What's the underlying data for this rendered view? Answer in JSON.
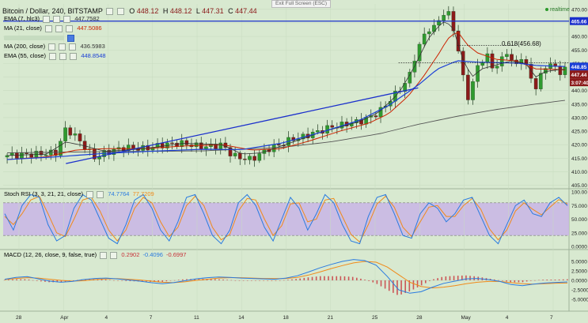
{
  "header": {
    "title": "Bitcoin / Dollar, 240, BITSTAMP",
    "ohlc": {
      "o_label": "O",
      "o": "448.12",
      "h_label": "H",
      "h": "448.12",
      "l_label": "L",
      "l": "447.31",
      "c_label": "C",
      "c": "447.44"
    },
    "exit_fullscreen": "Exit Full Screen (ESC)",
    "realtime": "realtime"
  },
  "indicators": [
    {
      "name": "EMA (7, hlc3)",
      "value": "447.7582",
      "color": "#333333"
    },
    {
      "name": "MA (21, close)",
      "value": "447.5086",
      "color": "#cc2200"
    },
    {
      "name": "MA (200, close)",
      "value": "436.5983",
      "color": "#444444"
    },
    {
      "name": "EMA (55, close)",
      "value": "448.8548",
      "color": "#1144cc"
    }
  ],
  "stoch": {
    "name": "Stoch RSI (3, 3, 21, 21, close)",
    "k": "74.7764",
    "d": "77.7209"
  },
  "macd": {
    "name": "MACD (12, 26, close, 9, false, true)",
    "hist": "0.2902",
    "macd": "-0.4096",
    "signal": "-0.6997"
  },
  "price_badges": {
    "resistance": "465.66",
    "last": "447.44",
    "ema55": "448.85",
    "countdown": "3:07:40"
  },
  "fib_label": "0.618(456.68)",
  "colors": {
    "bg": "#d8e9d0",
    "up": "#2f9a2f",
    "down": "#8b1a1a",
    "ema7": "#333333",
    "ma21": "#cc2200",
    "ma200": "#555555",
    "ema55": "#1a3fd6",
    "trend": "#1a2fcc",
    "stoch_k": "#2a7be0",
    "stoch_d": "#f08a1a",
    "stoch_band": "#c9b5e6",
    "macd_line": "#2a7be0",
    "macd_signal": "#f08a1a",
    "hist": "#c8323a"
  },
  "chart_data": [
    {
      "type": "candlestick",
      "title": "Bitcoin / Dollar, 240, BITSTAMP",
      "ylim": [
        404,
        472
      ],
      "yticks": [
        "470.00",
        "465.00",
        "460.00",
        "455.00",
        "450.00",
        "445.00",
        "440.00",
        "435.00",
        "430.00",
        "425.00",
        "420.00",
        "415.00",
        "410.00",
        "405.00"
      ],
      "xticks": [
        "28",
        "Apr",
        "4",
        "7",
        "11",
        "14",
        "18",
        "21",
        "25",
        "28",
        "May",
        "4",
        "7"
      ],
      "resistance_level": 465.66,
      "fib_level": 456.68,
      "dotted_level": 450.3,
      "trendline_lower": [
        [
          12,
          413
        ],
        [
          84,
          441
        ]
      ],
      "trendline_resistance_x": [
        0,
        116
      ],
      "close_path": [
        [
          0,
          416
        ],
        [
          6,
          416.5
        ],
        [
          10,
          417
        ],
        [
          12,
          426
        ],
        [
          14,
          423
        ],
        [
          16,
          419
        ],
        [
          18,
          415
        ],
        [
          20,
          417
        ],
        [
          24,
          419
        ],
        [
          28,
          418.5
        ],
        [
          32,
          420
        ],
        [
          36,
          420.5
        ],
        [
          40,
          419
        ],
        [
          44,
          420
        ],
        [
          46,
          416
        ],
        [
          48,
          415
        ],
        [
          50,
          414.5
        ],
        [
          52,
          417
        ],
        [
          54,
          419
        ],
        [
          56,
          420
        ],
        [
          58,
          422
        ],
        [
          60,
          422.5
        ],
        [
          62,
          424
        ],
        [
          64,
          425
        ],
        [
          66,
          426.5
        ],
        [
          68,
          427
        ],
        [
          70,
          428
        ],
        [
          72,
          428.5
        ],
        [
          74,
          430
        ],
        [
          76,
          432
        ],
        [
          78,
          436
        ],
        [
          80,
          440
        ],
        [
          82,
          444
        ],
        [
          83,
          451
        ],
        [
          84,
          455
        ],
        [
          85,
          460
        ],
        [
          86,
          463
        ],
        [
          87,
          462
        ],
        [
          88,
          466
        ],
        [
          89,
          468
        ],
        [
          90,
          469
        ],
        [
          91,
          465
        ],
        [
          92,
          456
        ],
        [
          93,
          447
        ],
        [
          94,
          437
        ],
        [
          95,
          441
        ],
        [
          96,
          449
        ],
        [
          97,
          451
        ],
        [
          98,
          453
        ],
        [
          99,
          449
        ],
        [
          100,
          449
        ],
        [
          101,
          451
        ],
        [
          102,
          455
        ],
        [
          103,
          451
        ],
        [
          104,
          449
        ],
        [
          105,
          453
        ],
        [
          106,
          449
        ],
        [
          107,
          445
        ],
        [
          108,
          441
        ],
        [
          109,
          445
        ],
        [
          110,
          449
        ],
        [
          111,
          450
        ],
        [
          112,
          448
        ],
        [
          113,
          447
        ],
        [
          114,
          448
        ],
        [
          115,
          447.44
        ]
      ],
      "ema7_path": [
        [
          0,
          416
        ],
        [
          8,
          416.5
        ],
        [
          12,
          421
        ],
        [
          16,
          419.5
        ],
        [
          20,
          417.5
        ],
        [
          28,
          418.5
        ],
        [
          36,
          420.5
        ],
        [
          44,
          420
        ],
        [
          48,
          416.5
        ],
        [
          52,
          417
        ],
        [
          56,
          419.5
        ],
        [
          60,
          422
        ],
        [
          64,
          424.5
        ],
        [
          68,
          426.5
        ],
        [
          72,
          428.5
        ],
        [
          76,
          432
        ],
        [
          80,
          439
        ],
        [
          83,
          448
        ],
        [
          86,
          459
        ],
        [
          89,
          465.5
        ],
        [
          91,
          464
        ],
        [
          93,
          452
        ],
        [
          95,
          445
        ],
        [
          97,
          448
        ],
        [
          100,
          449.5
        ],
        [
          103,
          451
        ],
        [
          106,
          450
        ],
        [
          108,
          445
        ],
        [
          110,
          447
        ],
        [
          113,
          447.8
        ],
        [
          115,
          447.76
        ]
      ],
      "ma21_path": [
        [
          0,
          414.5
        ],
        [
          8,
          415.5
        ],
        [
          14,
          418
        ],
        [
          20,
          418.5
        ],
        [
          28,
          418.5
        ],
        [
          36,
          419.5
        ],
        [
          44,
          420
        ],
        [
          50,
          418
        ],
        [
          56,
          418.5
        ],
        [
          62,
          421.5
        ],
        [
          68,
          425
        ],
        [
          74,
          428
        ],
        [
          78,
          431.5
        ],
        [
          82,
          438
        ],
        [
          85,
          445
        ],
        [
          88,
          453
        ],
        [
          90,
          459
        ],
        [
          92,
          462
        ],
        [
          94,
          457
        ],
        [
          96,
          454
        ],
        [
          100,
          451.5
        ],
        [
          104,
          451
        ],
        [
          108,
          448
        ],
        [
          112,
          447.8
        ],
        [
          115,
          447.51
        ]
      ],
      "ema55_path": [
        [
          0,
          414.5
        ],
        [
          10,
          415.5
        ],
        [
          20,
          416.8
        ],
        [
          30,
          417.6
        ],
        [
          40,
          418.3
        ],
        [
          48,
          418.2
        ],
        [
          56,
          420.5
        ],
        [
          64,
          424.5
        ],
        [
          72,
          429
        ],
        [
          78,
          434.5
        ],
        [
          84,
          442
        ],
        [
          88,
          448
        ],
        [
          92,
          451
        ],
        [
          96,
          450.5
        ],
        [
          100,
          450.3
        ],
        [
          104,
          450.2
        ],
        [
          108,
          449.3
        ],
        [
          112,
          449
        ],
        [
          115,
          448.85
        ]
      ],
      "ma200_path": [
        [
          0,
          417
        ],
        [
          20,
          417.4
        ],
        [
          40,
          417.7
        ],
        [
          56,
          419
        ],
        [
          66,
          421
        ],
        [
          76,
          424
        ],
        [
          84,
          427.5
        ],
        [
          92,
          430.5
        ],
        [
          100,
          433
        ],
        [
          108,
          435
        ],
        [
          115,
          436.6
        ]
      ]
    },
    {
      "type": "line",
      "title": "Stoch RSI (3, 3, 21, 21, close)",
      "ylim": [
        0,
        100
      ],
      "yticks": [
        "100.00",
        "75.000",
        "50.000",
        "25.000",
        "0.0000"
      ],
      "bands": [
        20,
        80
      ],
      "series": [
        {
          "name": "K",
          "values": [
            60,
            30,
            75,
            95,
            90,
            40,
            10,
            20,
            70,
            95,
            85,
            50,
            15,
            5,
            40,
            85,
            95,
            70,
            30,
            10,
            45,
            90,
            95,
            60,
            20,
            5,
            30,
            80,
            95,
            75,
            35,
            10,
            50,
            90,
            70,
            30,
            60,
            95,
            80,
            40,
            10,
            5,
            55,
            90,
            95,
            60,
            20,
            15,
            60,
            80,
            70,
            45,
            60,
            85,
            90,
            55,
            20,
            5,
            40,
            75,
            85,
            60,
            55,
            80,
            90,
            74.78
          ]
        },
        {
          "name": "D",
          "values": [
            55,
            40,
            60,
            85,
            92,
            60,
            25,
            18,
            50,
            85,
            90,
            65,
            30,
            10,
            30,
            70,
            90,
            80,
            45,
            18,
            35,
            75,
            92,
            75,
            35,
            12,
            22,
            65,
            88,
            85,
            50,
            20,
            38,
            78,
            80,
            45,
            50,
            85,
            88,
            55,
            22,
            8,
            40,
            78,
            92,
            72,
            35,
            18,
            45,
            72,
            75,
            55,
            55,
            75,
            88,
            68,
            32,
            12,
            30,
            65,
            80,
            68,
            58,
            72,
            86,
            77.72
          ]
        }
      ]
    },
    {
      "type": "bar",
      "title": "MACD (12, 26, close, 9, false, true)",
      "ylim": [
        -7.5,
        7.5
      ],
      "yticks": [
        "5.0000",
        "2.5000",
        "0.0000",
        "-2.5000",
        "-5.0000"
      ],
      "series": [
        {
          "name": "MACD",
          "values": [
            0.3,
            0.8,
            1.0,
            0.4,
            -0.2,
            -0.5,
            -0.3,
            0.2,
            0.5,
            0.6,
            0.4,
            0.1,
            -0.2,
            -0.6,
            -0.9,
            -0.6,
            -0.1,
            0.4,
            0.7,
            0.9,
            0.8,
            0.6,
            0.5,
            0.4,
            0.3,
            0.6,
            1.2,
            2.2,
            3.3,
            4.2,
            5.0,
            5.5,
            5.2,
            4.0,
            1.0,
            -2.5,
            -3.4,
            -3.0,
            -1.8,
            -0.8,
            -0.2,
            0.4,
            0.5,
            0.2,
            -0.3,
            -1.1,
            -1.4,
            -1.0,
            -0.7,
            -0.55,
            -0.41
          ]
        },
        {
          "name": "Signal",
          "values": [
            0.2,
            0.5,
            0.7,
            0.6,
            0.3,
            0.0,
            -0.2,
            -0.1,
            0.2,
            0.4,
            0.45,
            0.3,
            0.1,
            -0.2,
            -0.5,
            -0.6,
            -0.4,
            0.0,
            0.3,
            0.6,
            0.7,
            0.7,
            0.6,
            0.5,
            0.45,
            0.5,
            0.8,
            1.4,
            2.2,
            3.1,
            3.9,
            4.6,
            5.0,
            4.8,
            3.5,
            1.5,
            -0.5,
            -1.6,
            -2.0,
            -1.8,
            -1.4,
            -0.9,
            -0.5,
            -0.3,
            -0.3,
            -0.6,
            -0.9,
            -1.0,
            -0.9,
            -0.75,
            -0.7
          ]
        },
        {
          "name": "Histogram",
          "values": [
            0.1,
            0.3,
            0.3,
            -0.2,
            -0.5,
            -0.5,
            -0.1,
            0.3,
            0.3,
            0.2,
            -0.05,
            -0.2,
            -0.3,
            -0.4,
            -0.4,
            0.0,
            0.3,
            0.4,
            0.4,
            0.3,
            0.1,
            -0.1,
            -0.1,
            -0.1,
            -0.15,
            0.1,
            0.4,
            0.8,
            1.1,
            1.1,
            1.1,
            0.9,
            0.2,
            -0.8,
            -2.5,
            -4.0,
            -2.9,
            -1.4,
            0.2,
            1.0,
            1.2,
            1.3,
            1.0,
            0.5,
            0.0,
            -0.5,
            -0.5,
            0.0,
            0.2,
            0.2,
            0.29
          ]
        }
      ]
    }
  ]
}
